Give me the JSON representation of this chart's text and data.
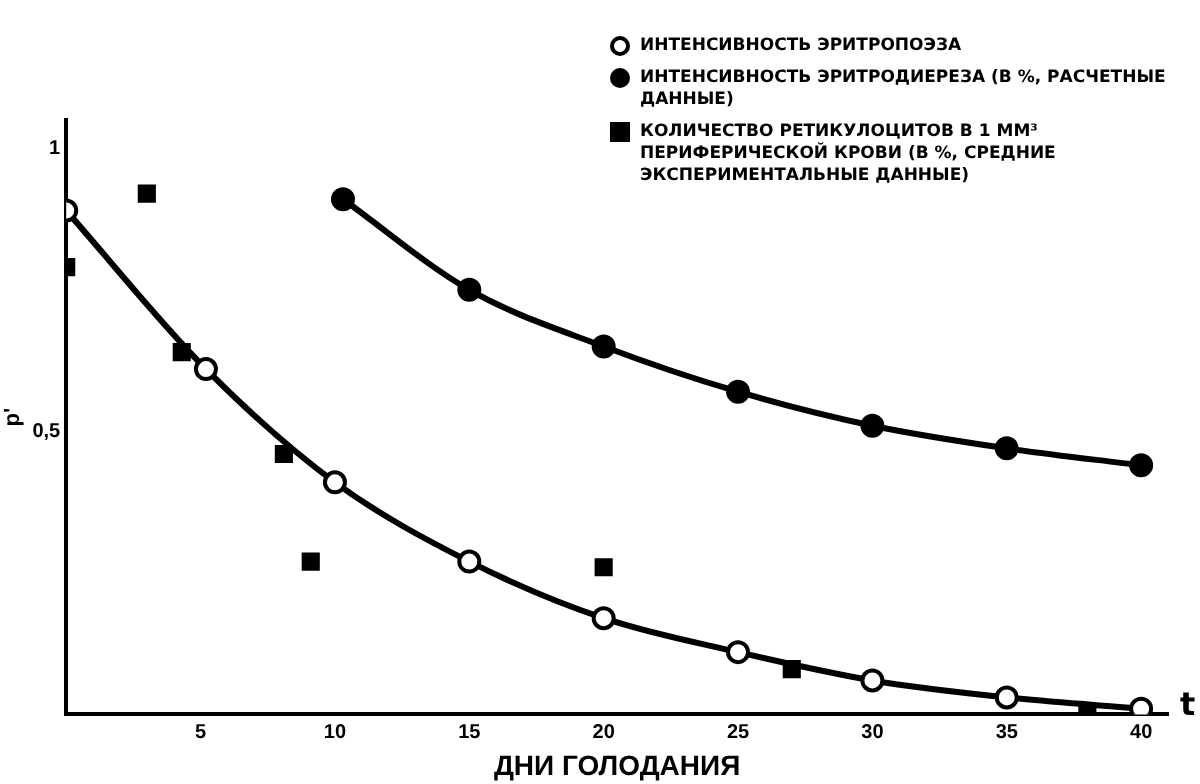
{
  "chart_data": {
    "type": "line",
    "xlabel": "ДНИ ГОЛОДАНИЯ",
    "ylabel": "p'",
    "annotations": [
      "t"
    ],
    "xlim": [
      0,
      41
    ],
    "xticks": [
      5,
      10,
      15,
      20,
      25,
      30,
      35,
      40
    ],
    "ylim": [
      0,
      1.05
    ],
    "yticks": [
      {
        "value": 0.5,
        "label": "0,5"
      },
      {
        "value": 1,
        "label": "1"
      }
    ],
    "grid": false,
    "legend": "top right",
    "series": [
      {
        "name": "ИНТЕНСИВНОСТЬ ЭРИТРОПОЭЗА",
        "type": "line",
        "marker": "circle",
        "color": "#000000",
        "x": [
          0,
          5.2,
          10,
          15,
          20,
          25,
          30,
          35,
          40
        ],
        "values": [
          0.89,
          0.61,
          0.41,
          0.27,
          0.17,
          0.11,
          0.06,
          0.03,
          0.01
        ]
      },
      {
        "name": "ИНТЕНСИВНОСТЬ ЭРИТРОДИЕРЕЗА (В %, РАСЧЕТНЫЕ ДАННЫЕ)",
        "type": "line",
        "marker": "circle",
        "color": "#000000",
        "x": [
          10.3,
          15,
          20,
          25,
          30,
          35,
          40
        ],
        "values": [
          0.91,
          0.75,
          0.65,
          0.57,
          0.51,
          0.47,
          0.44
        ]
      },
      {
        "name": "КОЛИЧЕСТВО РЕТИКУЛОЦИТОВ В 1 ММ³ ПЕРИФЕРИЧЕСКОЙ КРОВИ (В %, СРЕДНИЕ ЭКСПЕРИМЕНТАЛЬНЫЕ ДАННЫЕ)",
        "type": "scatter",
        "marker": "square",
        "color": "#000000",
        "x": [
          0,
          3,
          4.3,
          8.1,
          9.1,
          20,
          27,
          38
        ],
        "values": [
          0.79,
          0.92,
          0.64,
          0.46,
          0.27,
          0.26,
          0.08,
          0.0
        ]
      }
    ]
  }
}
